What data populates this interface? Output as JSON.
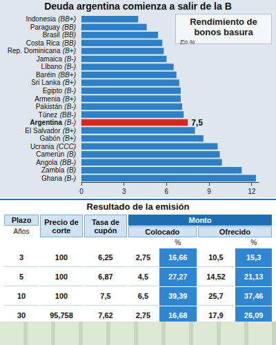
{
  "header": {
    "title": "Deuda argentina comienza a salir de la B"
  },
  "chart_data": {
    "type": "bar",
    "orientation": "horizontal",
    "title": "Rendimiento de bonos basura",
    "subtitle": "En %",
    "categories": [
      "Indonesia",
      "Paraguay",
      "Brasil",
      "Costa Rica",
      "Rep. Dominicana",
      "Jamaica",
      "Líbano",
      "Baréin",
      "Sri Lanka",
      "Egipto",
      "Armenia",
      "Pakistán",
      "Túnez",
      "Argentina",
      "El Salvador",
      "Gabón",
      "Ucrania",
      "Camerún",
      "Angola",
      "Zambia",
      "Ghana"
    ],
    "ratings": [
      "(BB+)",
      "(BB)",
      "(BB)",
      "(BB)",
      "(B+)",
      "(B-)",
      "(B-)",
      "(BB+)",
      "(B+)",
      "(B-)",
      "(B+)",
      "(B-)",
      "(BB-)",
      "(B-)",
      "(B+)",
      "(B+)",
      "(CCC)",
      "(B)",
      "(BB-)",
      "(B)",
      "(B-)"
    ],
    "values": [
      4.0,
      4.6,
      5.4,
      5.7,
      5.8,
      6.0,
      6.5,
      6.7,
      6.9,
      7.0,
      7.0,
      7.1,
      7.2,
      7.5,
      8.0,
      8.6,
      9.6,
      9.75,
      9.9,
      11.3,
      12.3
    ],
    "colors": [
      "#2f7fc4",
      "#2f7fc4",
      "#2f7fc4",
      "#2f7fc4",
      "#2f7fc4",
      "#2f7fc4",
      "#2f7fc4",
      "#2f7fc4",
      "#2f7fc4",
      "#2f7fc4",
      "#2f7fc4",
      "#2f7fc4",
      "#2f7fc4",
      "#d7261e",
      "#2f7fc4",
      "#2f7fc4",
      "#2f7fc4",
      "#2f7fc4",
      "#2f7fc4",
      "#2f7fc4",
      "#2f7fc4"
    ],
    "data_labels": true,
    "value_labels": [
      null,
      null,
      null,
      null,
      null,
      null,
      null,
      null,
      null,
      null,
      null,
      null,
      null,
      "7,5",
      null,
      null,
      null,
      null,
      null,
      null,
      null
    ],
    "xlim": [
      0,
      12.5
    ],
    "xticks": [
      0,
      3,
      6,
      9,
      12
    ],
    "grid": false
  },
  "table": {
    "title": "Resultado de la emisión",
    "columns": [
      "Plazo",
      "Precio de corte",
      "Tasa de cupón",
      "Monto"
    ],
    "plazo_unit": "Años",
    "amount_columns": [
      "Colocado",
      "Ofrecido"
    ],
    "percent_head": "%",
    "rows": [
      [
        "3",
        "100",
        "6,25",
        "2,75",
        "16,66",
        "10,5",
        "15,3"
      ],
      [
        "5",
        "100",
        "6,87",
        "4,5",
        "27,27",
        "14,52",
        "21,13"
      ],
      [
        "10",
        "100",
        "7,5",
        "6,5",
        "39,39",
        "25,7",
        "37,46"
      ],
      [
        "30",
        "95,758",
        "7,62",
        "2,75",
        "16,68",
        "17,9",
        "26,09"
      ]
    ]
  }
}
